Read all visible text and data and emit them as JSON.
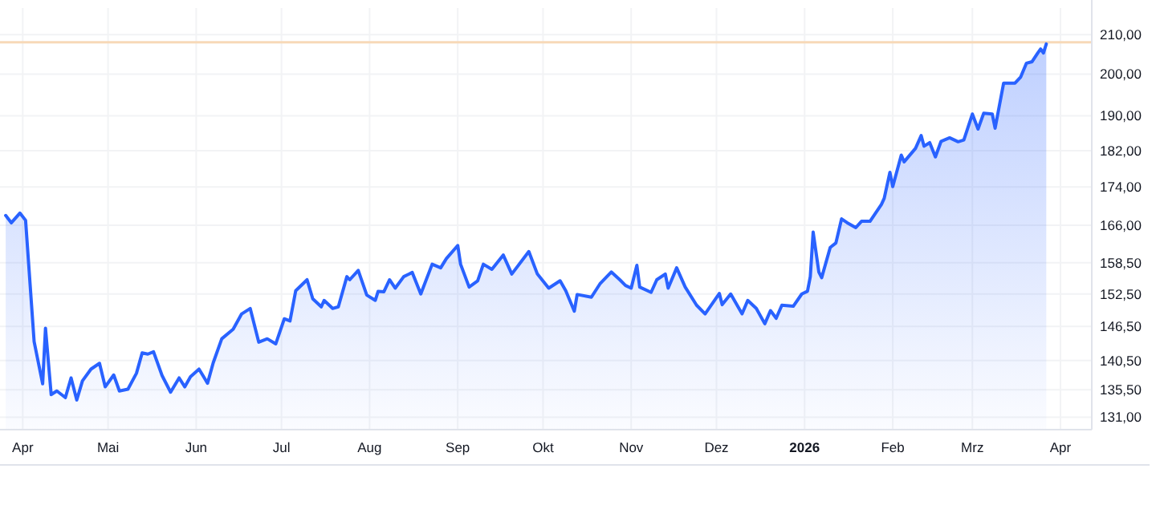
{
  "chart_data": {
    "type": "area",
    "log": true,
    "grid": true,
    "x": [
      "2025-03-26",
      "2025-03-28",
      "2025-03-31",
      "2025-04-02",
      "2025-04-05",
      "2025-04-08",
      "2025-04-09",
      "2025-04-11",
      "2025-04-13",
      "2025-04-16",
      "2025-04-18",
      "2025-04-20",
      "2025-04-22",
      "2025-04-25",
      "2025-04-28",
      "2025-04-30",
      "2025-05-03",
      "2025-05-05",
      "2025-05-08",
      "2025-05-11",
      "2025-05-13",
      "2025-05-15",
      "2025-05-17",
      "2025-05-20",
      "2025-05-23",
      "2025-05-26",
      "2025-05-28",
      "2025-05-30",
      "2025-06-02",
      "2025-06-05",
      "2025-06-07",
      "2025-06-10",
      "2025-06-14",
      "2025-06-17",
      "2025-06-20",
      "2025-06-23",
      "2025-06-26",
      "2025-06-29",
      "2025-07-02",
      "2025-07-04",
      "2025-07-06",
      "2025-07-10",
      "2025-07-12",
      "2025-07-15",
      "2025-07-16",
      "2025-07-19",
      "2025-07-21",
      "2025-07-24",
      "2025-07-25",
      "2025-07-28",
      "2025-07-31",
      "2025-08-03",
      "2025-08-04",
      "2025-08-06",
      "2025-08-08",
      "2025-08-10",
      "2025-08-13",
      "2025-08-16",
      "2025-08-19",
      "2025-08-23",
      "2025-08-26",
      "2025-08-28",
      "2025-09-01",
      "2025-09-02",
      "2025-09-05",
      "2025-09-08",
      "2025-09-10",
      "2025-09-13",
      "2025-09-17",
      "2025-09-20",
      "2025-09-26",
      "2025-09-29",
      "2025-10-03",
      "2025-10-07",
      "2025-10-09",
      "2025-10-12",
      "2025-10-13",
      "2025-10-18",
      "2025-10-21",
      "2025-10-25",
      "2025-10-28",
      "2025-10-30",
      "2025-11-01",
      "2025-11-03",
      "2025-11-04",
      "2025-11-08",
      "2025-11-10",
      "2025-11-13",
      "2025-11-14",
      "2025-11-17",
      "2025-11-20",
      "2025-11-24",
      "2025-11-27",
      "2025-12-02",
      "2025-12-03",
      "2025-12-06",
      "2025-12-10",
      "2025-12-12",
      "2025-12-15",
      "2025-12-18",
      "2025-12-20",
      "2025-12-22",
      "2025-12-24",
      "2025-12-28",
      "2025-12-31",
      "2026-01-02",
      "2026-01-03",
      "2026-01-04",
      "2026-01-06",
      "2026-01-07",
      "2026-01-10",
      "2026-01-12",
      "2026-01-14",
      "2026-01-16",
      "2026-01-19",
      "2026-01-21",
      "2026-01-24",
      "2026-01-28",
      "2026-01-29",
      "2026-01-31",
      "2026-02-01",
      "2026-02-04",
      "2026-02-05",
      "2026-02-09",
      "2026-02-11",
      "2026-02-12",
      "2026-02-14",
      "2026-02-16",
      "2026-02-18",
      "2026-02-21",
      "2026-02-24",
      "2026-02-26",
      "2026-03-01",
      "2026-03-03",
      "2026-03-05",
      "2026-03-08",
      "2026-03-09",
      "2026-03-12",
      "2026-03-16",
      "2026-03-18",
      "2026-03-20",
      "2026-03-22",
      "2026-03-24",
      "2026-03-25",
      "2026-03-26",
      "2026-03-27"
    ],
    "series": [
      {
        "color": "#2962ff",
        "values": [
          168,
          166.5,
          168.5,
          167,
          143.8,
          136.5,
          146.2,
          134.7,
          135.3,
          134.2,
          137.5,
          133.8,
          137,
          139,
          140,
          136,
          138,
          135.3,
          135.6,
          138.3,
          141.8,
          141.6,
          142,
          137.9,
          135.1,
          137.5,
          136,
          137.7,
          139,
          136.6,
          140.1,
          144.3,
          146,
          148.8,
          149.8,
          143.7,
          144.3,
          143.4,
          147.9,
          147.5,
          153.1,
          155.2,
          151.6,
          150.1,
          151.3,
          149.8,
          150.1,
          155.8,
          155.2,
          157,
          152.3,
          151.3,
          153,
          152.9,
          155.2,
          153.6,
          155.8,
          156.6,
          152.5,
          158.2,
          157.5,
          159.3,
          161.9,
          158.2,
          153.8,
          155,
          158.2,
          157.2,
          160,
          156.3,
          160.7,
          156.3,
          153.6,
          155,
          153.1,
          149.3,
          152.4,
          151.9,
          154.4,
          156.7,
          155.2,
          154.1,
          153.6,
          158,
          153.8,
          152.8,
          155.2,
          156.3,
          153.6,
          157.5,
          153.8,
          150.4,
          148.8,
          152.6,
          150.5,
          152.5,
          148.8,
          151.3,
          149.8,
          147,
          149.4,
          148,
          150.4,
          150.2,
          152.5,
          153,
          155.8,
          164.6,
          156.7,
          155.6,
          161.5,
          162.4,
          167.3,
          166.5,
          165.5,
          166.8,
          166.8,
          170.3,
          171.6,
          177.2,
          174.1,
          181,
          179.5,
          182.5,
          185.4,
          183,
          183.8,
          180.6,
          184.1,
          184.9,
          184,
          184.4,
          190.4,
          186.9,
          190.6,
          190.4,
          187.1,
          197.8,
          197.8,
          199.3,
          202.7,
          203.1,
          205.3,
          206.3,
          205.3,
          207.6
        ]
      }
    ],
    "xlim": [
      "2025-03-24",
      "2026-04-12"
    ],
    "xticks": [
      {
        "value": "2025-04-01",
        "label": "Apr"
      },
      {
        "value": "2025-05-01",
        "label": "Mai"
      },
      {
        "value": "2025-06-01",
        "label": "Jun"
      },
      {
        "value": "2025-07-01",
        "label": "Jul"
      },
      {
        "value": "2025-08-01",
        "label": "Aug"
      },
      {
        "value": "2025-09-01",
        "label": "Sep"
      },
      {
        "value": "2025-10-01",
        "label": "Okt"
      },
      {
        "value": "2025-11-01",
        "label": "Nov"
      },
      {
        "value": "2025-12-01",
        "label": "Dez"
      },
      {
        "value": "2026-01-01",
        "label": "2026"
      },
      {
        "value": "2026-02-01",
        "label": "Feb"
      },
      {
        "value": "2026-03-01",
        "label": "Mrz"
      },
      {
        "value": "2026-04-01",
        "label": "Apr"
      }
    ],
    "ylim": [
      129,
      217
    ],
    "yticks": [
      {
        "value": 131,
        "label": "131,00"
      },
      {
        "value": 135.5,
        "label": "135,50"
      },
      {
        "value": 140.5,
        "label": "140,50"
      },
      {
        "value": 146.5,
        "label": "146,50"
      },
      {
        "value": 152.5,
        "label": "152,50"
      },
      {
        "value": 158.5,
        "label": "158,50"
      },
      {
        "value": 166,
        "label": "166,00"
      },
      {
        "value": 174,
        "label": "174,00"
      },
      {
        "value": 182,
        "label": "182,00"
      },
      {
        "value": 190,
        "label": "190,00"
      },
      {
        "value": 200,
        "label": "200,00"
      },
      {
        "value": 210,
        "label": "210,00"
      }
    ],
    "ref_lines": [
      {
        "axis": "y",
        "value": 208,
        "color": "#f7d9b8"
      }
    ]
  }
}
